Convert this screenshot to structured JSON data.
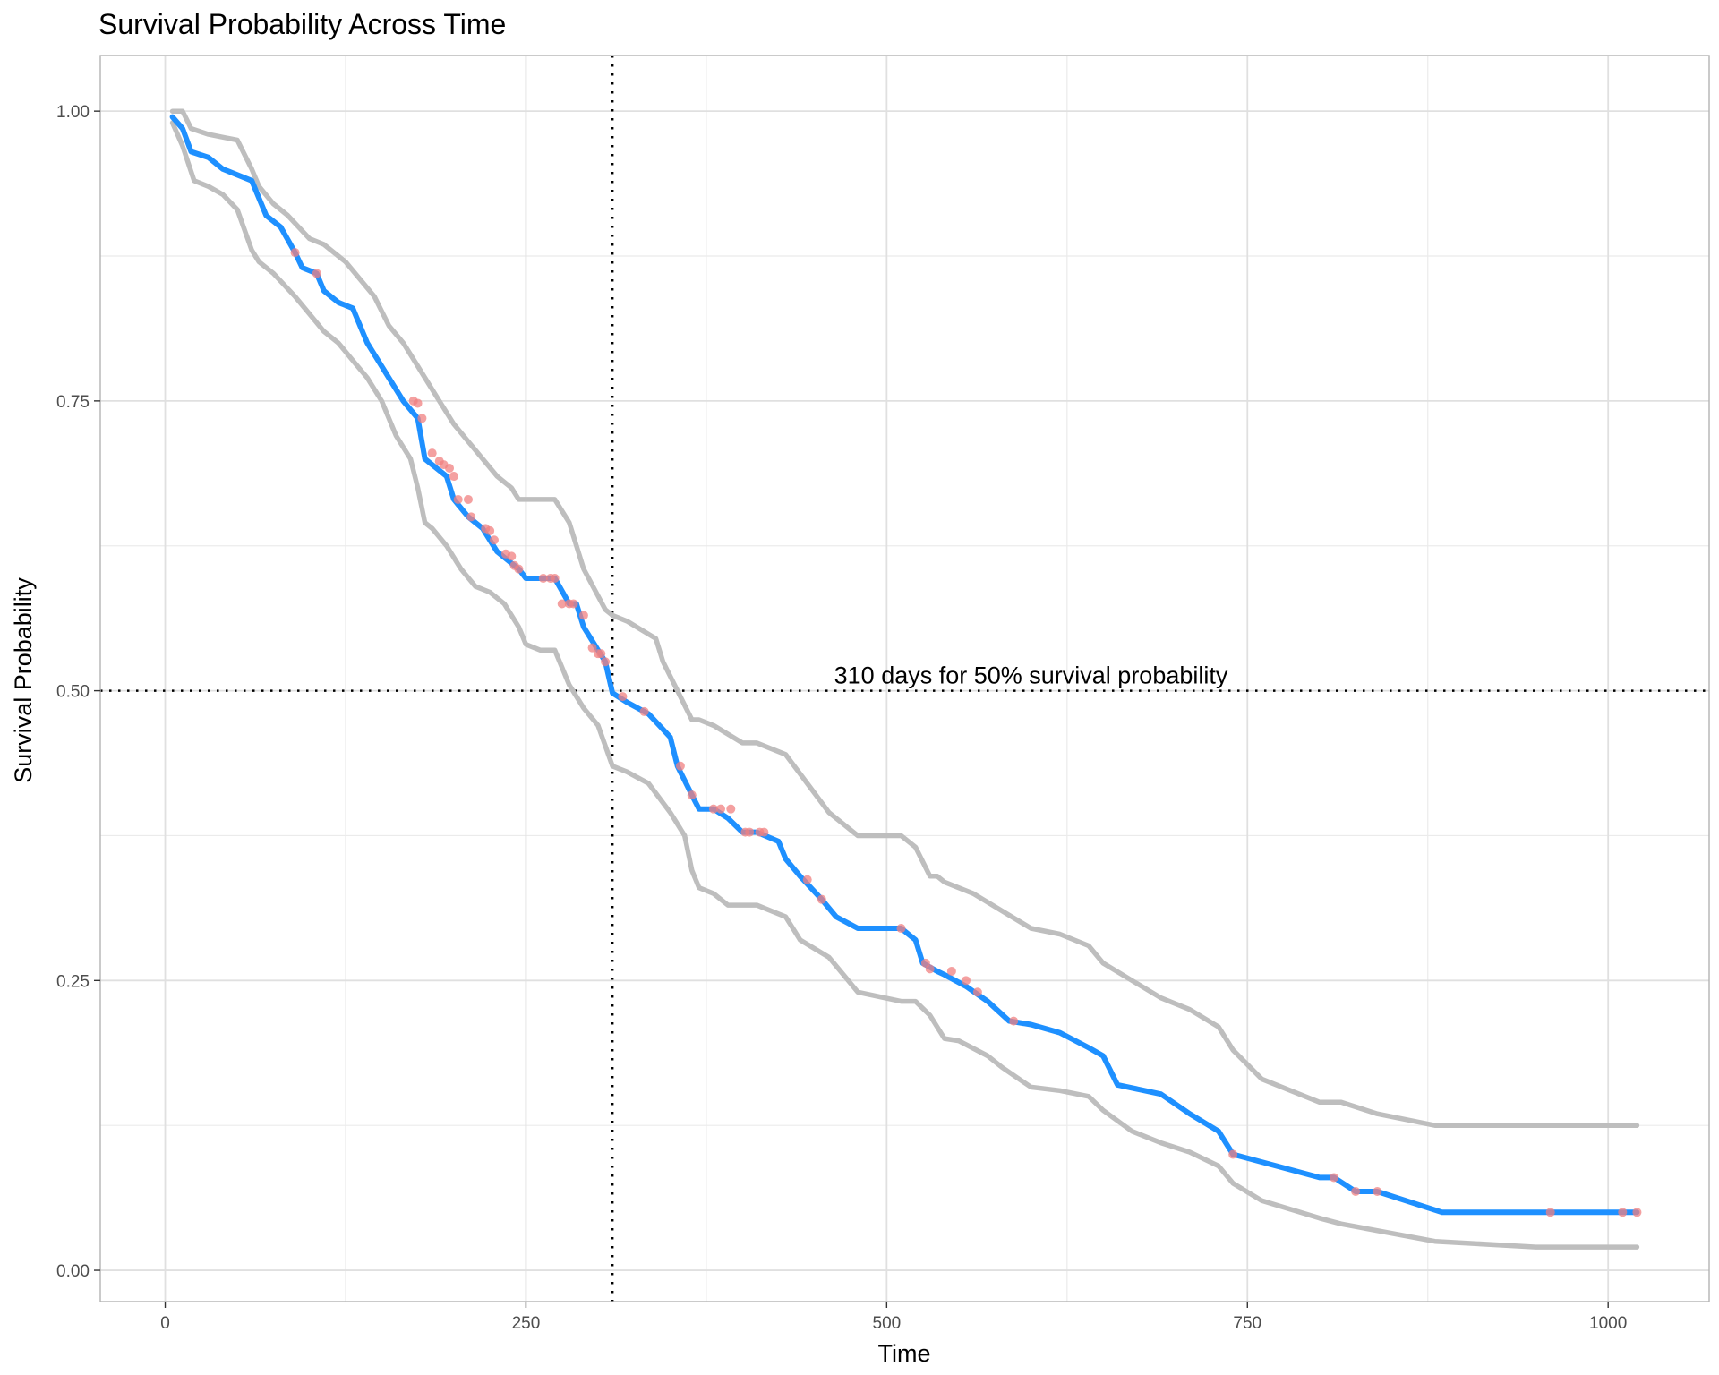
{
  "chart_data": {
    "type": "line",
    "title": "Survival Probability Across Time",
    "xlabel": "Time",
    "ylabel": "Survival Probability",
    "xlim": [
      -45,
      1070
    ],
    "ylim": [
      -0.027,
      1.048
    ],
    "x_ticks": [
      0,
      250,
      500,
      750,
      1000
    ],
    "x_tick_labels": [
      "0",
      "250",
      "500",
      "750",
      "1000"
    ],
    "x_minor_ticks": [
      125,
      375,
      625,
      875
    ],
    "y_ticks": [
      0,
      0.25,
      0.5,
      0.75,
      1.0
    ],
    "y_tick_labels": [
      "0.00",
      "0.25",
      "0.50",
      "0.75",
      "1.00"
    ],
    "y_minor_ticks": [
      0.125,
      0.375,
      0.625,
      0.875
    ],
    "grid": true,
    "median_line": {
      "x": 310,
      "y": 0.5
    },
    "annotation": {
      "text": "310 days for 50% survival probability",
      "x": 600,
      "y": 0.5
    },
    "colors": {
      "estimate": "#1e90ff",
      "ci": "#bebebe",
      "censor": "#f08080",
      "grid": "#ebebeb",
      "panel_border": "#b3b3b3"
    },
    "series": [
      {
        "role": "estimate",
        "x": [
          5,
          12,
          18,
          30,
          40,
          60,
          70,
          80,
          90,
          95,
          105,
          110,
          120,
          130,
          140,
          145,
          155,
          165,
          175,
          180,
          185,
          195,
          200,
          210,
          220,
          225,
          230,
          240,
          245,
          250,
          260,
          270,
          280,
          285,
          290,
          300,
          305,
          310,
          320,
          335,
          350,
          355,
          365,
          370,
          380,
          390,
          400,
          410,
          425,
          430,
          440,
          455,
          465,
          480,
          510,
          520,
          525,
          535,
          540,
          555,
          570,
          585,
          600,
          620,
          640,
          650,
          660,
          690,
          710,
          730,
          740,
          800,
          810,
          825,
          840,
          885,
          950,
          1020
        ],
        "y": [
          0.995,
          0.985,
          0.965,
          0.96,
          0.95,
          0.94,
          0.91,
          0.9,
          0.878,
          0.865,
          0.86,
          0.845,
          0.835,
          0.83,
          0.8,
          0.79,
          0.77,
          0.75,
          0.735,
          0.7,
          0.695,
          0.685,
          0.665,
          0.65,
          0.64,
          0.63,
          0.62,
          0.61,
          0.605,
          0.597,
          0.597,
          0.597,
          0.575,
          0.575,
          0.555,
          0.535,
          0.525,
          0.498,
          0.49,
          0.48,
          0.46,
          0.435,
          0.41,
          0.398,
          0.398,
          0.39,
          0.378,
          0.378,
          0.37,
          0.355,
          0.34,
          0.32,
          0.305,
          0.295,
          0.295,
          0.285,
          0.265,
          0.258,
          0.255,
          0.245,
          0.232,
          0.215,
          0.212,
          0.205,
          0.192,
          0.185,
          0.16,
          0.152,
          0.135,
          0.12,
          0.1,
          0.08,
          0.08,
          0.068,
          0.068,
          0.05,
          0.05,
          0.05
        ]
      },
      {
        "role": "ci-upper",
        "x": [
          5,
          12,
          18,
          30,
          50,
          60,
          65,
          75,
          85,
          100,
          110,
          125,
          135,
          145,
          155,
          165,
          175,
          180,
          190,
          200,
          210,
          220,
          230,
          240,
          245,
          250,
          270,
          280,
          290,
          305,
          310,
          320,
          340,
          345,
          355,
          365,
          370,
          380,
          400,
          410,
          430,
          445,
          460,
          480,
          510,
          520,
          530,
          535,
          540,
          560,
          580,
          600,
          620,
          640,
          650,
          670,
          690,
          710,
          730,
          740,
          760,
          800,
          815,
          840,
          880,
          950,
          1020
        ],
        "y": [
          1.0,
          1.0,
          0.985,
          0.98,
          0.975,
          0.95,
          0.935,
          0.92,
          0.91,
          0.89,
          0.885,
          0.87,
          0.855,
          0.84,
          0.815,
          0.8,
          0.78,
          0.77,
          0.75,
          0.73,
          0.715,
          0.7,
          0.685,
          0.675,
          0.665,
          0.665,
          0.665,
          0.645,
          0.605,
          0.57,
          0.565,
          0.56,
          0.545,
          0.525,
          0.5,
          0.475,
          0.475,
          0.47,
          0.455,
          0.455,
          0.445,
          0.42,
          0.395,
          0.375,
          0.375,
          0.365,
          0.34,
          0.34,
          0.335,
          0.325,
          0.31,
          0.295,
          0.29,
          0.28,
          0.265,
          0.25,
          0.235,
          0.225,
          0.21,
          0.19,
          0.165,
          0.145,
          0.145,
          0.135,
          0.125,
          0.125,
          0.125
        ]
      },
      {
        "role": "ci-lower",
        "x": [
          5,
          12,
          20,
          30,
          40,
          50,
          60,
          65,
          75,
          90,
          100,
          110,
          120,
          130,
          140,
          150,
          160,
          170,
          175,
          180,
          185,
          195,
          205,
          215,
          225,
          235,
          245,
          250,
          260,
          270,
          280,
          290,
          300,
          310,
          320,
          335,
          350,
          360,
          365,
          370,
          380,
          390,
          400,
          410,
          430,
          440,
          460,
          470,
          480,
          510,
          520,
          530,
          540,
          550,
          570,
          580,
          600,
          620,
          640,
          650,
          670,
          690,
          710,
          730,
          740,
          760,
          800,
          815,
          880,
          950,
          1020
        ],
        "y": [
          0.99,
          0.97,
          0.94,
          0.935,
          0.928,
          0.915,
          0.88,
          0.87,
          0.86,
          0.84,
          0.825,
          0.81,
          0.8,
          0.785,
          0.77,
          0.75,
          0.72,
          0.7,
          0.675,
          0.645,
          0.64,
          0.625,
          0.605,
          0.59,
          0.585,
          0.575,
          0.555,
          0.54,
          0.535,
          0.535,
          0.505,
          0.485,
          0.47,
          0.435,
          0.43,
          0.42,
          0.395,
          0.375,
          0.345,
          0.33,
          0.325,
          0.315,
          0.315,
          0.315,
          0.305,
          0.285,
          0.27,
          0.255,
          0.24,
          0.232,
          0.232,
          0.22,
          0.2,
          0.198,
          0.185,
          0.175,
          0.158,
          0.155,
          0.15,
          0.138,
          0.12,
          0.11,
          0.102,
          0.09,
          0.075,
          0.06,
          0.045,
          0.04,
          0.025,
          0.02,
          0.02
        ]
      }
    ],
    "censor_points": {
      "x": [
        90,
        105,
        172,
        175,
        178,
        185,
        190,
        193,
        197,
        200,
        203,
        210,
        212,
        222,
        225,
        228,
        236,
        240,
        242,
        245,
        262,
        267,
        270,
        275,
        280,
        283,
        290,
        296,
        300,
        302,
        305,
        317,
        332,
        357,
        365,
        380,
        385,
        392,
        402,
        405,
        412,
        415,
        445,
        455,
        510,
        527,
        530,
        545,
        555,
        563,
        588,
        740,
        810,
        825,
        840,
        960,
        1010,
        1020
      ],
      "y": [
        0.878,
        0.86,
        0.75,
        0.748,
        0.735,
        0.705,
        0.698,
        0.695,
        0.692,
        0.685,
        0.665,
        0.665,
        0.65,
        0.64,
        0.638,
        0.63,
        0.618,
        0.616,
        0.608,
        0.605,
        0.597,
        0.597,
        0.597,
        0.575,
        0.575,
        0.575,
        0.565,
        0.537,
        0.532,
        0.532,
        0.525,
        0.495,
        0.482,
        0.435,
        0.41,
        0.398,
        0.398,
        0.398,
        0.378,
        0.378,
        0.378,
        0.378,
        0.337,
        0.32,
        0.295,
        0.265,
        0.26,
        0.258,
        0.25,
        0.24,
        0.215,
        0.1,
        0.08,
        0.068,
        0.068,
        0.05,
        0.05,
        0.05
      ]
    }
  }
}
